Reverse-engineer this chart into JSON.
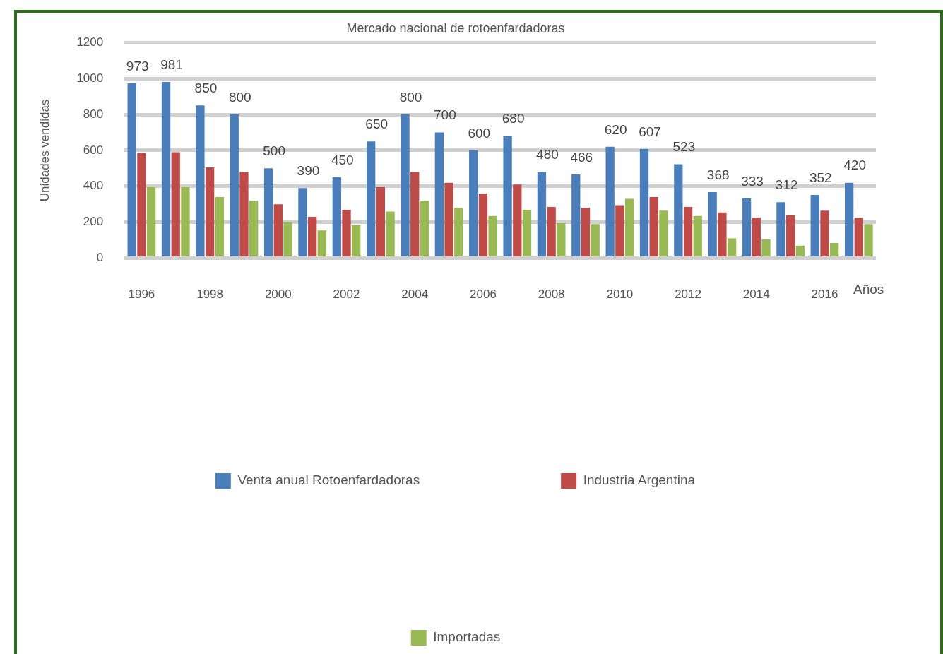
{
  "chart_data": {
    "type": "bar",
    "title": "Mercado nacional de rotoenfardadoras",
    "xlabel": "Años",
    "ylabel": "Unidades vendidas",
    "categories": [
      "1996",
      null,
      "1998",
      null,
      "2000",
      null,
      "2002",
      null,
      "2004",
      null,
      "2006",
      null,
      "2008",
      null,
      "2010",
      null,
      "2012",
      null,
      "2014",
      null,
      "2016",
      null
    ],
    "series": [
      {
        "name": "Venta anual Rotoenfardadoras",
        "color": "#4a7ebb",
        "values": [
          973,
          981,
          850,
          800,
          500,
          390,
          450,
          650,
          800,
          700,
          600,
          680,
          480,
          466,
          620,
          607,
          523,
          368,
          333,
          312,
          352,
          420
        ],
        "value_labels": [
          "973",
          "981",
          "850",
          "800",
          "500",
          "390",
          "450",
          "650",
          "800",
          "700",
          "600",
          "680",
          "480",
          "466",
          "620",
          "607",
          "523",
          "368",
          "333",
          "312",
          "352",
          "420"
        ]
      },
      {
        "name": "Industria Argentina",
        "color": "#be4b48",
        "values": [
          585,
          590,
          505,
          480,
          300,
          230,
          270,
          395,
          480,
          420,
          360,
          410,
          285,
          280,
          295,
          340,
          285,
          255,
          225,
          240,
          265,
          225
        ]
      },
      {
        "name": "Importadas",
        "color": "#98b954",
        "values": [
          395,
          395,
          340,
          320,
          200,
          155,
          185,
          260,
          320,
          280,
          235,
          270,
          195,
          190,
          330,
          265,
          235,
          110,
          105,
          70,
          85,
          190
        ]
      }
    ],
    "ylim": [
      0,
      1200
    ],
    "yticks": [
      0,
      200,
      400,
      600,
      800,
      1000,
      1200
    ],
    "grid": "y",
    "legend": "bottom"
  }
}
